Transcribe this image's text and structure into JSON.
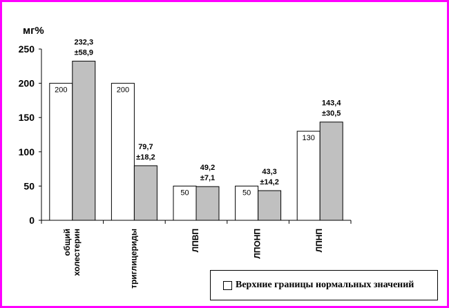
{
  "chart_data": {
    "type": "bar",
    "ylabel": "мг%",
    "ylim": [
      0,
      250
    ],
    "yticks": [
      "0",
      "50",
      "100",
      "150",
      "200",
      "250"
    ],
    "categories": [
      [
        "общий",
        "холестерин"
      ],
      [
        "триглицериды"
      ],
      [
        "ЛПВП"
      ],
      [
        "ЛПОНП"
      ],
      [
        "ЛПНП"
      ]
    ],
    "series": [
      {
        "name": "Верхние границы нормальных значений",
        "color": "#ffffff",
        "values": [
          200,
          200,
          50,
          50,
          130
        ],
        "labels": [
          "200",
          "200",
          "50",
          "50",
          "130"
        ]
      },
      {
        "color": "#c0c0c0",
        "values": [
          232.3,
          79.7,
          49.2,
          43.3,
          143.4
        ],
        "labels": [
          [
            "232,3",
            "±58,9"
          ],
          [
            "79,7",
            "±18,2"
          ],
          [
            "49,2",
            "±7,1"
          ],
          [
            "43,3",
            "±14,2"
          ],
          [
            "143,4",
            "±30,5"
          ]
        ]
      }
    ],
    "grid": false,
    "legend_position": "bottom-right"
  },
  "colors": {
    "frame": "#ff00ff"
  }
}
